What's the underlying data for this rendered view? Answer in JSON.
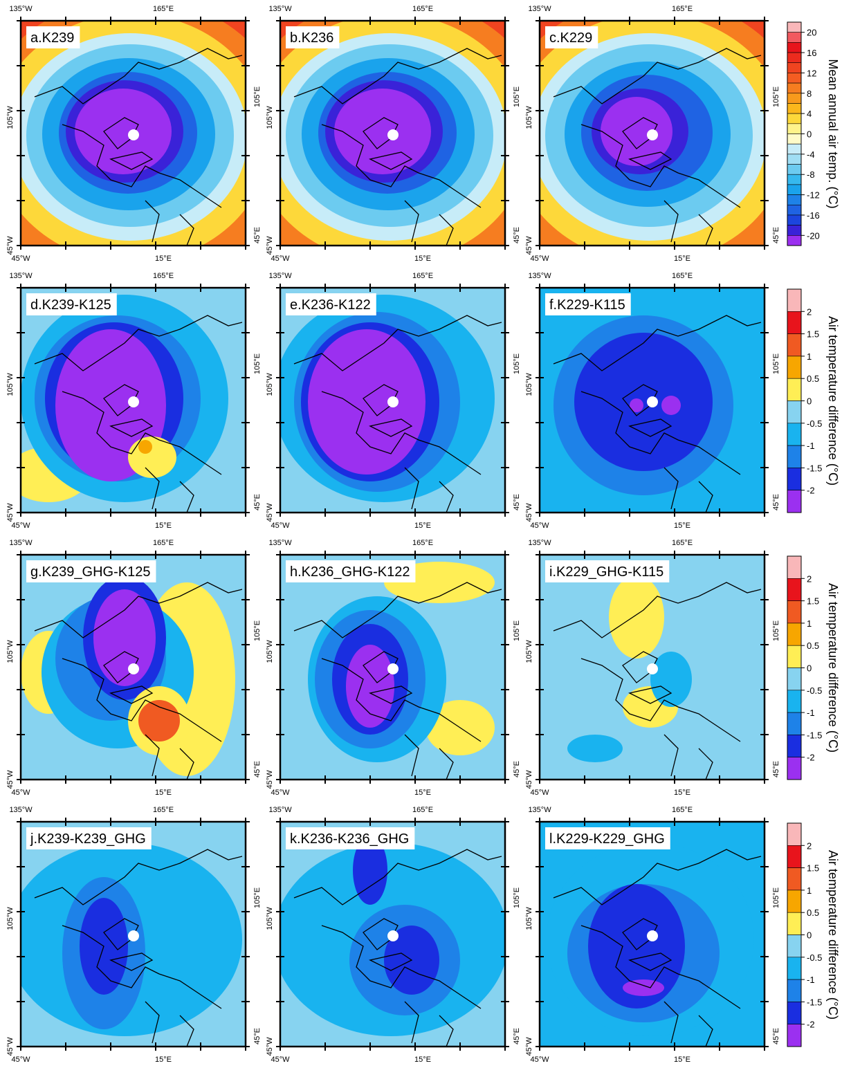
{
  "panels": [
    {
      "label": "a.K239"
    },
    {
      "label": "b.K236"
    },
    {
      "label": "c.K229"
    },
    {
      "label": "d.K239-K125"
    },
    {
      "label": "e.K236-K122"
    },
    {
      "label": "f.K229-K115"
    },
    {
      "label": "g.K239_GHG-K125"
    },
    {
      "label": "h.K236_GHG-K122"
    },
    {
      "label": "i.K229_GHG-K115"
    },
    {
      "label": "j.K239-K239_GHG"
    },
    {
      "label": "k.K236-K236_GHG"
    },
    {
      "label": "l.K229-K229_GHG"
    }
  ],
  "axis_labels": {
    "top_left": "135°W",
    "top_center": "165°E",
    "left": "105°W",
    "right": "105°E",
    "bottom_left": "45°W",
    "bottom_center": "15°E",
    "right_bottom": "45°E"
  },
  "colorbars": [
    {
      "title": "Mean annual air temp. (°C)",
      "ticks": [
        "20",
        "16",
        "12",
        "8",
        "4",
        "0",
        "-4",
        "-8",
        "-12",
        "-16",
        "-20"
      ]
    },
    {
      "title": "Air temperature difference (°C)",
      "ticks": [
        "2",
        "1.5",
        "1",
        "0.5",
        "0",
        "-0.5",
        "-1",
        "-1.5",
        "-2"
      ]
    },
    {
      "title": "Air temperature difference (°C)",
      "ticks": [
        "2",
        "1.5",
        "1",
        "0.5",
        "0",
        "-0.5",
        "-1",
        "-1.5",
        "-2"
      ]
    },
    {
      "title": "Air temperature difference (°C)",
      "ticks": [
        "2",
        "1.5",
        "1",
        "0.5",
        "0",
        "-0.5",
        "-1",
        "-1.5",
        "-2"
      ]
    }
  ]
}
